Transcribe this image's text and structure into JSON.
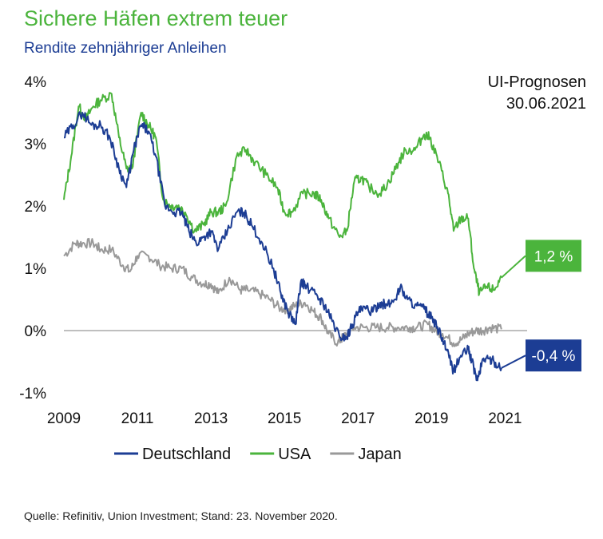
{
  "header": {
    "title": "Sichere Häfen extrem teuer",
    "subtitle": "Rendite zehnjähriger Anleihen"
  },
  "annotation": {
    "line1": "UI-Prognosen",
    "line2": "30.06.2021"
  },
  "source": "Quelle: Refinitiv, Union Investment; Stand: 23. November 2020.",
  "colors": {
    "germany": "#1c3d94",
    "usa": "#4bb43c",
    "japan": "#999999",
    "zero_line": "#aaaaaa"
  },
  "chart_data": {
    "type": "line",
    "title": "Sichere Häfen extrem teuer",
    "subtitle": "Rendite zehnjähriger Anleihen",
    "xlabel": "",
    "ylabel": "",
    "xlim": [
      2009,
      2021.6
    ],
    "ylim": [
      -1,
      4
    ],
    "x_ticks": [
      "2009",
      "2011",
      "2013",
      "2015",
      "2017",
      "2019",
      "2021"
    ],
    "y_ticks": [
      "4%",
      "3%",
      "2%",
      "1%",
      "0%",
      "-1%"
    ],
    "grid": false,
    "legend_position": "bottom",
    "series": [
      {
        "name": "Deutschland",
        "color": "#1c3d94",
        "points": [
          [
            2009.0,
            3.1
          ],
          [
            2009.25,
            3.3
          ],
          [
            2009.5,
            3.5
          ],
          [
            2009.75,
            3.3
          ],
          [
            2010.0,
            3.3
          ],
          [
            2010.25,
            3.1
          ],
          [
            2010.5,
            2.6
          ],
          [
            2010.7,
            2.3
          ],
          [
            2010.9,
            2.9
          ],
          [
            2011.1,
            3.3
          ],
          [
            2011.3,
            3.2
          ],
          [
            2011.5,
            2.8
          ],
          [
            2011.75,
            2.0
          ],
          [
            2012.0,
            1.9
          ],
          [
            2012.2,
            1.9
          ],
          [
            2012.4,
            1.6
          ],
          [
            2012.6,
            1.4
          ],
          [
            2012.8,
            1.5
          ],
          [
            2013.0,
            1.6
          ],
          [
            2013.2,
            1.3
          ],
          [
            2013.45,
            1.6
          ],
          [
            2013.7,
            1.9
          ],
          [
            2013.9,
            1.9
          ],
          [
            2014.1,
            1.7
          ],
          [
            2014.4,
            1.4
          ],
          [
            2014.7,
            1.0
          ],
          [
            2014.9,
            0.6
          ],
          [
            2015.1,
            0.3
          ],
          [
            2015.3,
            0.1
          ],
          [
            2015.45,
            0.8
          ],
          [
            2015.6,
            0.7
          ],
          [
            2015.9,
            0.55
          ],
          [
            2016.1,
            0.4
          ],
          [
            2016.3,
            0.15
          ],
          [
            2016.5,
            -0.1
          ],
          [
            2016.7,
            -0.1
          ],
          [
            2016.85,
            0.1
          ],
          [
            2017.0,
            0.3
          ],
          [
            2017.2,
            0.35
          ],
          [
            2017.4,
            0.3
          ],
          [
            2017.6,
            0.45
          ],
          [
            2017.8,
            0.4
          ],
          [
            2018.0,
            0.5
          ],
          [
            2018.15,
            0.7
          ],
          [
            2018.35,
            0.5
          ],
          [
            2018.6,
            0.4
          ],
          [
            2018.8,
            0.35
          ],
          [
            2019.0,
            0.2
          ],
          [
            2019.2,
            0.0
          ],
          [
            2019.4,
            -0.3
          ],
          [
            2019.6,
            -0.65
          ],
          [
            2019.8,
            -0.4
          ],
          [
            2020.0,
            -0.3
          ],
          [
            2020.1,
            -0.5
          ],
          [
            2020.25,
            -0.8
          ],
          [
            2020.4,
            -0.45
          ],
          [
            2020.55,
            -0.45
          ],
          [
            2020.7,
            -0.5
          ],
          [
            2020.9,
            -0.6
          ]
        ]
      },
      {
        "name": "USA",
        "color": "#4bb43c",
        "points": [
          [
            2009.0,
            2.1
          ],
          [
            2009.2,
            2.8
          ],
          [
            2009.4,
            3.6
          ],
          [
            2009.6,
            3.4
          ],
          [
            2009.8,
            3.6
          ],
          [
            2010.0,
            3.7
          ],
          [
            2010.3,
            3.8
          ],
          [
            2010.5,
            3.1
          ],
          [
            2010.7,
            2.6
          ],
          [
            2010.85,
            2.6
          ],
          [
            2011.1,
            3.5
          ],
          [
            2011.3,
            3.3
          ],
          [
            2011.5,
            3.1
          ],
          [
            2011.7,
            2.1
          ],
          [
            2011.9,
            2.0
          ],
          [
            2012.1,
            2.0
          ],
          [
            2012.3,
            1.9
          ],
          [
            2012.55,
            1.6
          ],
          [
            2012.8,
            1.7
          ],
          [
            2013.0,
            1.9
          ],
          [
            2013.2,
            1.9
          ],
          [
            2013.4,
            2.0
          ],
          [
            2013.7,
            2.8
          ],
          [
            2013.95,
            2.9
          ],
          [
            2014.2,
            2.7
          ],
          [
            2014.5,
            2.5
          ],
          [
            2014.8,
            2.3
          ],
          [
            2015.0,
            1.9
          ],
          [
            2015.2,
            1.9
          ],
          [
            2015.5,
            2.2
          ],
          [
            2015.8,
            2.2
          ],
          [
            2016.0,
            2.1
          ],
          [
            2016.2,
            1.8
          ],
          [
            2016.5,
            1.5
          ],
          [
            2016.7,
            1.6
          ],
          [
            2016.9,
            2.4
          ],
          [
            2017.1,
            2.45
          ],
          [
            2017.3,
            2.3
          ],
          [
            2017.6,
            2.2
          ],
          [
            2017.85,
            2.4
          ],
          [
            2018.1,
            2.7
          ],
          [
            2018.3,
            2.9
          ],
          [
            2018.55,
            2.9
          ],
          [
            2018.8,
            3.15
          ],
          [
            2018.95,
            3.1
          ],
          [
            2019.2,
            2.7
          ],
          [
            2019.45,
            2.2
          ],
          [
            2019.6,
            1.6
          ],
          [
            2019.8,
            1.8
          ],
          [
            2020.0,
            1.8
          ],
          [
            2020.15,
            1.0
          ],
          [
            2020.3,
            0.6
          ],
          [
            2020.5,
            0.7
          ],
          [
            2020.7,
            0.65
          ],
          [
            2020.9,
            0.85
          ]
        ]
      },
      {
        "name": "Japan",
        "color": "#999999",
        "points": [
          [
            2009.0,
            1.2
          ],
          [
            2009.3,
            1.4
          ],
          [
            2009.5,
            1.4
          ],
          [
            2009.8,
            1.4
          ],
          [
            2010.0,
            1.3
          ],
          [
            2010.3,
            1.3
          ],
          [
            2010.6,
            1.05
          ],
          [
            2010.8,
            0.95
          ],
          [
            2011.0,
            1.2
          ],
          [
            2011.3,
            1.2
          ],
          [
            2011.6,
            1.05
          ],
          [
            2011.9,
            1.0
          ],
          [
            2012.2,
            1.0
          ],
          [
            2012.5,
            0.85
          ],
          [
            2012.8,
            0.75
          ],
          [
            2013.0,
            0.75
          ],
          [
            2013.2,
            0.6
          ],
          [
            2013.5,
            0.85
          ],
          [
            2013.8,
            0.65
          ],
          [
            2014.0,
            0.65
          ],
          [
            2014.3,
            0.6
          ],
          [
            2014.6,
            0.5
          ],
          [
            2014.9,
            0.35
          ],
          [
            2015.1,
            0.35
          ],
          [
            2015.3,
            0.4
          ],
          [
            2015.55,
            0.45
          ],
          [
            2015.8,
            0.3
          ],
          [
            2016.0,
            0.2
          ],
          [
            2016.2,
            -0.05
          ],
          [
            2016.45,
            -0.2
          ],
          [
            2016.6,
            -0.1
          ],
          [
            2016.9,
            0.05
          ],
          [
            2017.2,
            0.05
          ],
          [
            2017.5,
            0.05
          ],
          [
            2017.8,
            0.05
          ],
          [
            2018.1,
            0.05
          ],
          [
            2018.4,
            0.05
          ],
          [
            2018.6,
            0.05
          ],
          [
            2018.9,
            0.1
          ],
          [
            2019.1,
            0.0
          ],
          [
            2019.3,
            -0.05
          ],
          [
            2019.6,
            -0.2
          ],
          [
            2019.8,
            -0.15
          ],
          [
            2020.0,
            -0.05
          ],
          [
            2020.2,
            0.0
          ],
          [
            2020.4,
            0.0
          ],
          [
            2020.6,
            0.05
          ],
          [
            2020.9,
            0.02
          ]
        ]
      }
    ],
    "forecasts": [
      {
        "series": "USA",
        "x": 2021.5,
        "value": 1.2,
        "label": "1,2 %"
      },
      {
        "series": "Deutschland",
        "x": 2021.5,
        "value": -0.4,
        "label": "-0,4 %"
      }
    ]
  }
}
